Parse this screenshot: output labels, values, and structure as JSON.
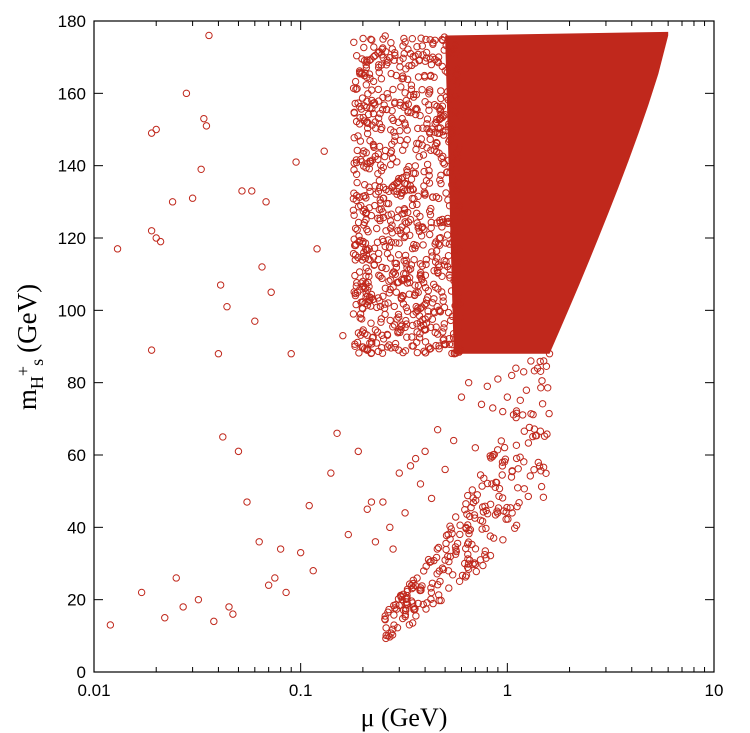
{
  "chart_data": {
    "type": "scatter",
    "title": "",
    "xlabel": "μ (GeV)",
    "ylabel": {
      "base": "m",
      "sub_main": "H",
      "sup": "+",
      "sub_tail": "s",
      "unit": "(GeV)"
    },
    "xscale": "log",
    "xlim": [
      0.01,
      10
    ],
    "ylim": [
      0,
      180
    ],
    "xticks": [
      0.01,
      0.1,
      1,
      10
    ],
    "xtick_labels": [
      "0.01",
      "0.1",
      "1",
      "10"
    ],
    "yticks": [
      0,
      20,
      40,
      60,
      80,
      100,
      120,
      140,
      160,
      180
    ],
    "ytick_labels": [
      "0",
      "20",
      "40",
      "60",
      "80",
      "100",
      "120",
      "140",
      "160",
      "180"
    ],
    "grid": false,
    "legend": "none",
    "marker": "open-circle",
    "color": "#c0281c",
    "series": [
      {
        "x": [
          0.012,
          0.013,
          0.017,
          0.019,
          0.019,
          0.019,
          0.02,
          0.02,
          0.021,
          0.022,
          0.024,
          0.025,
          0.027,
          0.028,
          0.03,
          0.032,
          0.033,
          0.034,
          0.035,
          0.036,
          0.038,
          0.04,
          0.041,
          0.042,
          0.044,
          0.045,
          0.047,
          0.05,
          0.052,
          0.055,
          0.058,
          0.06,
          0.063,
          0.065,
          0.068,
          0.07,
          0.072,
          0.075,
          0.08,
          0.085,
          0.09,
          0.095,
          0.1,
          0.11,
          0.115,
          0.12,
          0.13,
          0.14,
          0.15,
          0.16,
          0.17,
          0.18,
          0.19,
          0.2,
          0.21,
          0.22,
          0.23,
          0.25,
          0.27,
          0.28,
          0.3,
          0.32,
          0.34,
          0.36,
          0.38,
          0.4,
          0.43,
          0.46,
          0.5,
          0.55,
          0.6,
          0.65,
          0.7,
          0.75,
          0.8,
          0.85,
          0.9,
          0.95,
          1.0,
          1.05,
          1.1,
          1.2,
          1.3,
          1.4,
          1.5,
          1.6
        ],
        "y": [
          13,
          117,
          22,
          89,
          122,
          149,
          150,
          120,
          119,
          15,
          130,
          26,
          18,
          160,
          131,
          20,
          139,
          153,
          151,
          176,
          14,
          88,
          107,
          65,
          101,
          18,
          16,
          61,
          133,
          47,
          133,
          97,
          36,
          112,
          130,
          24,
          105,
          26,
          34,
          22,
          88,
          141,
          33,
          46,
          28,
          117,
          144,
          55,
          66,
          93,
          38,
          99,
          61,
          108,
          45,
          47,
          36,
          47,
          40,
          34,
          55,
          44,
          57,
          59,
          52,
          61,
          48,
          67,
          56,
          64,
          76,
          80,
          62,
          74,
          79,
          73,
          81,
          72,
          76,
          82,
          84,
          83,
          86,
          84,
          86,
          88
        ]
      }
    ]
  }
}
